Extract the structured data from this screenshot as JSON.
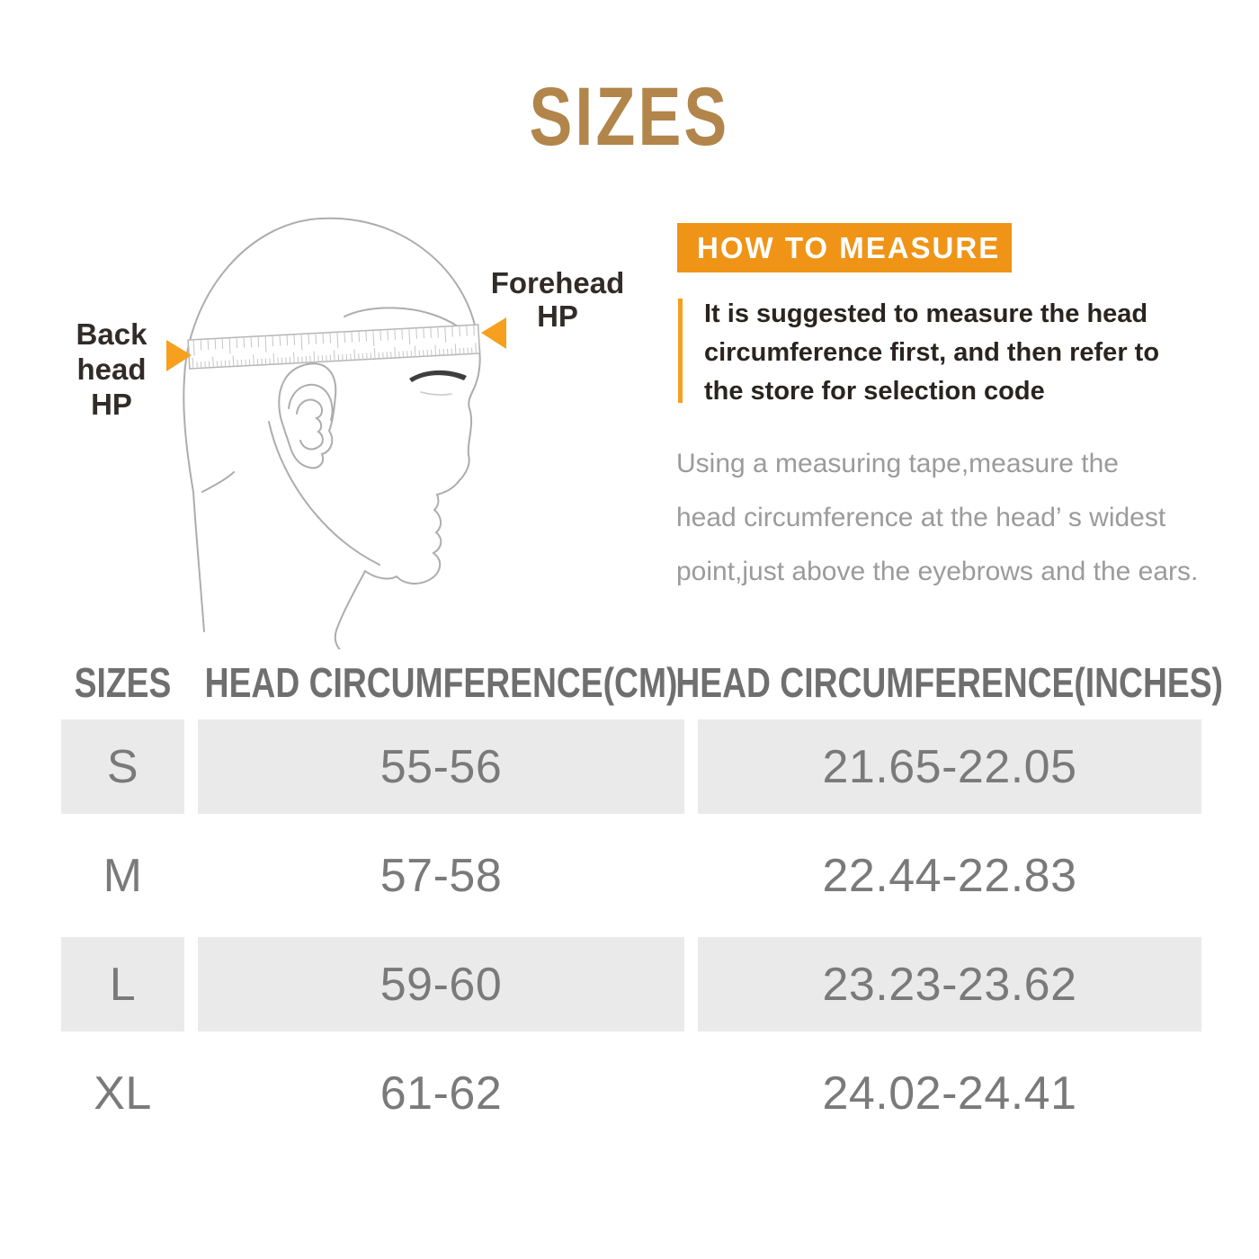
{
  "title": "SIZES",
  "diagram": {
    "back_label_lines": [
      "Back",
      "head",
      "HP"
    ],
    "forehead_label_lines": [
      "Forehead",
      "HP"
    ]
  },
  "how_to": {
    "banner": "HOW TO MEASURE",
    "bold_lines": [
      "It is suggested to measure the head",
      "circumference first, and then refer to",
      "the store for selection code"
    ],
    "note_lines": [
      "Using a measuring tape,measure the",
      "head circumference at the head’ s widest",
      "point,just above the eyebrows and the ears."
    ]
  },
  "table": {
    "headers": [
      "SIZES",
      "HEAD CIRCUMFERENCE(CM)",
      "HEAD CIRCUMFERENCE(INCHES)"
    ],
    "rows": [
      {
        "size": "S",
        "cm": "55-56",
        "inches": "21.65-22.05"
      },
      {
        "size": "M",
        "cm": "57-58",
        "inches": "22.44-22.83"
      },
      {
        "size": "L",
        "cm": "59-60",
        "inches": "23.23-23.62"
      },
      {
        "size": "XL",
        "cm": "61-62",
        "inches": "24.02-24.41"
      }
    ]
  },
  "colors": {
    "title_brown": "#B2854B",
    "banner_orange": "#EF9417",
    "arrow_orange": "#F6A01E",
    "table_row_gray": "#EAEAEA",
    "table_text_gray": "#7A7A7A",
    "header_text_gray": "#6F6F6F",
    "note_gray": "#9B9B9B",
    "sketch_line_gray": "#ADADAD",
    "dark_text": "#29241F"
  }
}
